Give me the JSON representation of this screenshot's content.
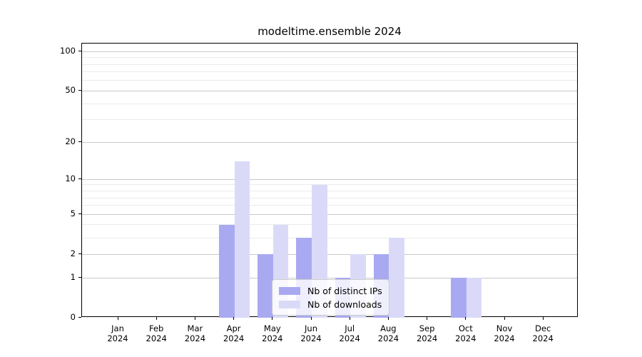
{
  "chart_data": {
    "type": "bar",
    "title": "modeltime.ensemble 2024",
    "categories": [
      "Jan 2024",
      "Feb 2024",
      "Mar 2024",
      "Apr 2024",
      "May 2024",
      "Jun 2024",
      "Jul 2024",
      "Aug 2024",
      "Sep 2024",
      "Oct 2024",
      "Nov 2024",
      "Dec 2024"
    ],
    "series": [
      {
        "name": "Nb of distinct IPs",
        "color": "#a9a9f2",
        "values": [
          0,
          0,
          0,
          4,
          2,
          3,
          1,
          2,
          0,
          1,
          0,
          0
        ]
      },
      {
        "name": "Nb of downloads",
        "color": "#dadaf8",
        "values": [
          0,
          0,
          0,
          14,
          4,
          9,
          2,
          3,
          0,
          1,
          0,
          0
        ]
      }
    ],
    "yscale": "log1p",
    "ylim": [
      0,
      115
    ],
    "yticks_major": [
      0,
      1,
      2,
      5,
      10,
      20,
      50,
      100
    ],
    "yticks_minor": [
      3,
      4,
      6,
      7,
      8,
      9,
      30,
      40,
      60,
      70,
      80,
      90
    ],
    "xlabel": "",
    "ylabel": "",
    "grid": true,
    "legend_position": "lower center",
    "colors": {
      "grid_major": "#c9c9c9",
      "grid_minor": "#ebebeb",
      "axis": "#000000",
      "background": "#ffffff",
      "text": "#000000"
    }
  }
}
